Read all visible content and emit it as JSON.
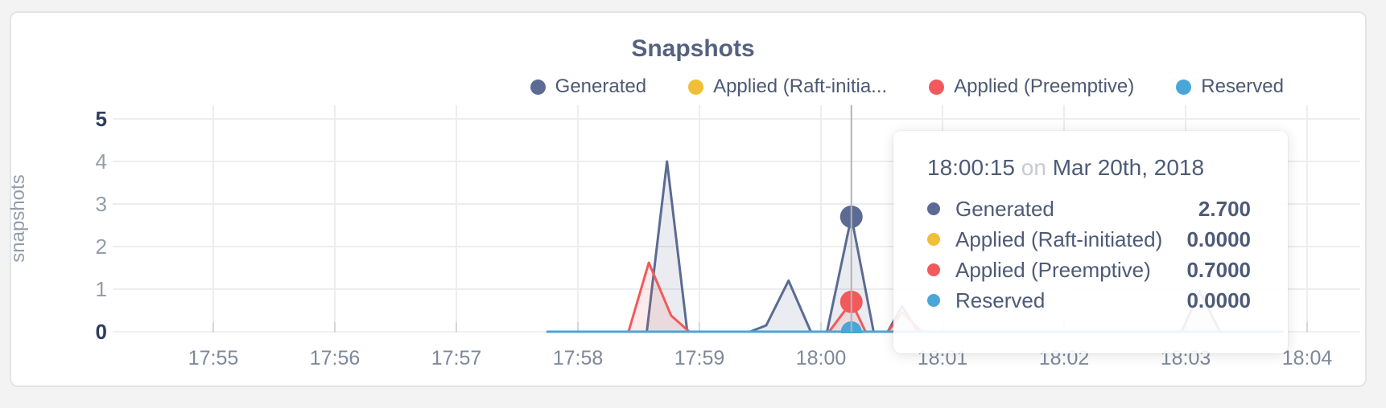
{
  "chart_data": {
    "type": "area",
    "title": "Snapshots",
    "ylabel": "snapshots",
    "xlabel": "",
    "ylim": [
      0,
      5
    ],
    "grid": true,
    "legend_position": "top-right",
    "x_unit": "seconds since 17:55:00 on Mar 20th, 2018",
    "x_ticks": [
      {
        "seconds": 0,
        "label": "17:55"
      },
      {
        "seconds": 60,
        "label": "17:56"
      },
      {
        "seconds": 120,
        "label": "17:57"
      },
      {
        "seconds": 180,
        "label": "17:58"
      },
      {
        "seconds": 240,
        "label": "17:59"
      },
      {
        "seconds": 300,
        "label": "18:00"
      },
      {
        "seconds": 360,
        "label": "18:01"
      },
      {
        "seconds": 420,
        "label": "18:02"
      },
      {
        "seconds": 480,
        "label": "18:03"
      },
      {
        "seconds": 540,
        "label": "18:04"
      }
    ],
    "y_ticks": [
      {
        "value": 0,
        "label": "0",
        "bold": true
      },
      {
        "value": 1,
        "label": "1",
        "bold": false
      },
      {
        "value": 2,
        "label": "2",
        "bold": false
      },
      {
        "value": 3,
        "label": "3",
        "bold": false
      },
      {
        "value": 4,
        "label": "4",
        "bold": false
      },
      {
        "value": 5,
        "label": "5",
        "bold": true
      }
    ],
    "series": [
      {
        "name": "Generated",
        "color": "#5b6b93",
        "fill": "rgba(91,107,147,0.13)",
        "points": [
          [
            165,
            0
          ],
          [
            214,
            0
          ],
          [
            224,
            4
          ],
          [
            234,
            0
          ],
          [
            265,
            0
          ],
          [
            273,
            0.15
          ],
          [
            284,
            1.2
          ],
          [
            295,
            0
          ],
          [
            303,
            0
          ],
          [
            315,
            2.7
          ],
          [
            326,
            0
          ],
          [
            333,
            0
          ],
          [
            340,
            0.6
          ],
          [
            348,
            0
          ],
          [
            478,
            0
          ],
          [
            487,
            0.95
          ],
          [
            497,
            0
          ],
          [
            528,
            0
          ]
        ]
      },
      {
        "name": "Applied (Raft-initiated)",
        "color": "#f0bf35",
        "fill": "none",
        "points": [
          [
            165,
            0
          ],
          [
            528,
            0
          ]
        ]
      },
      {
        "name": "Applied (Preemptive)",
        "color": "#f2595c",
        "fill": "rgba(242,89,92,0.12)",
        "points": [
          [
            165,
            0
          ],
          [
            205,
            0
          ],
          [
            215,
            1.62
          ],
          [
            226,
            0.38
          ],
          [
            235,
            0
          ],
          [
            304,
            0
          ],
          [
            315,
            0.7
          ],
          [
            322,
            0
          ],
          [
            333,
            0
          ],
          [
            340,
            0.45
          ],
          [
            350,
            0
          ],
          [
            528,
            0
          ]
        ]
      },
      {
        "name": "Reserved",
        "color": "#4ba6d8",
        "fill": "none",
        "points": [
          [
            165,
            0
          ],
          [
            528,
            0
          ]
        ]
      }
    ],
    "legend": [
      {
        "label": "Generated",
        "color": "#5b6b93"
      },
      {
        "label": "Applied (Raft-initia...",
        "color": "#f0bf35"
      },
      {
        "label": "Applied (Preemptive)",
        "color": "#f2595c"
      },
      {
        "label": "Reserved",
        "color": "#4ba6d8"
      }
    ],
    "crosshair": {
      "seconds": 315,
      "time_label": "18:00:15",
      "values": [
        2.7,
        0,
        0.7,
        0
      ]
    }
  },
  "tooltip": {
    "time": "18:00:15",
    "on_word": "on",
    "date": "Mar 20th, 2018",
    "rows": [
      {
        "label": "Generated",
        "value": "2.700",
        "color": "#5b6b93"
      },
      {
        "label": "Applied (Raft-initiated)",
        "value": "0.0000",
        "color": "#f0bf35"
      },
      {
        "label": "Applied (Preemptive)",
        "value": "0.7000",
        "color": "#f2595c"
      },
      {
        "label": "Reserved",
        "value": "0.0000",
        "color": "#4ba6d8"
      }
    ]
  }
}
